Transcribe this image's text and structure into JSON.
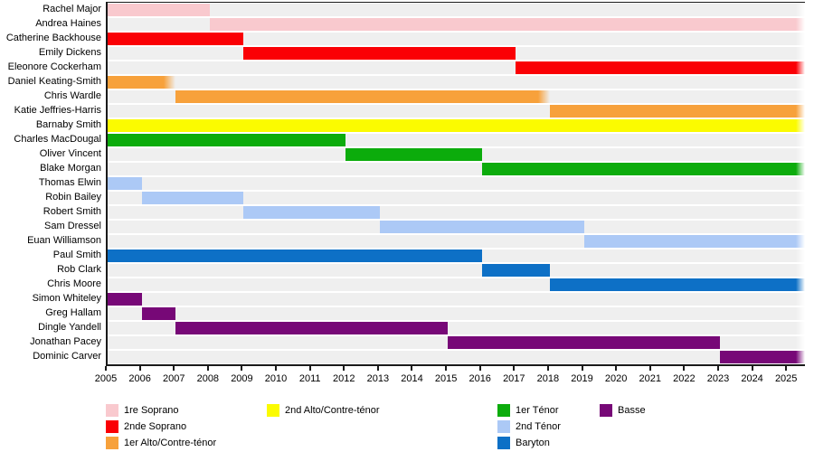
{
  "chart_data": {
    "type": "timeline",
    "title": "",
    "x_axis": {
      "min": 2005,
      "max": 2025.5,
      "ticks": [
        "2005",
        "2006",
        "2007",
        "2008",
        "2009",
        "2010",
        "2011",
        "2012",
        "2013",
        "2014",
        "2015",
        "2016",
        "2017",
        "2018",
        "2019",
        "2020",
        "2021",
        "2022",
        "2023",
        "2024",
        "2025"
      ]
    },
    "row_background_color": "#EFEFEF",
    "parts": {
      "soprano1": {
        "label": "1re Soprano",
        "color": "#F9C9CE"
      },
      "soprano2": {
        "label": "2nde Soprano",
        "color": "#FA0005"
      },
      "alto1": {
        "label": "1er Alto/Contre-ténor",
        "color": "#F7A13B"
      },
      "alto2": {
        "label": "2nd Alto/Contre-ténor",
        "color": "#FBFB00"
      },
      "tenor1": {
        "label": "1er Ténor",
        "color": "#0CAC0C"
      },
      "tenor2": {
        "label": "2nd Ténor",
        "color": "#ACC9F6"
      },
      "baryton": {
        "label": "Baryton",
        "color": "#0D70C6"
      },
      "basse": {
        "label": "Basse",
        "color": "#770877"
      }
    },
    "members": [
      {
        "name": "Rachel Major",
        "part": "soprano1",
        "start": 2005,
        "end": 2008,
        "ongoing": false,
        "fade_end": false
      },
      {
        "name": "Andrea Haines",
        "part": "soprano1",
        "start": 2008,
        "end": null,
        "ongoing": true,
        "fade_end": false
      },
      {
        "name": "Catherine Backhouse",
        "part": "soprano2",
        "start": 2005,
        "end": 2009,
        "ongoing": false,
        "fade_end": false
      },
      {
        "name": "Emily Dickens",
        "part": "soprano2",
        "start": 2009,
        "end": 2017,
        "ongoing": false,
        "fade_end": false
      },
      {
        "name": "Eleonore Cockerham",
        "part": "soprano2",
        "start": 2017,
        "end": null,
        "ongoing": true,
        "fade_end": false
      },
      {
        "name": "Daniel Keating-Smith",
        "part": "alto1",
        "start": 2005,
        "end": 2007,
        "ongoing": false,
        "fade_end": true
      },
      {
        "name": "Chris Wardle",
        "part": "alto1",
        "start": 2007,
        "end": 2018,
        "ongoing": false,
        "fade_end": true
      },
      {
        "name": "Katie Jeffries-Harris",
        "part": "alto1",
        "start": 2018,
        "end": null,
        "ongoing": true,
        "fade_end": false
      },
      {
        "name": "Barnaby Smith",
        "part": "alto2",
        "start": 2005,
        "end": null,
        "ongoing": true,
        "fade_end": false
      },
      {
        "name": "Charles MacDougal",
        "part": "tenor1",
        "start": 2005,
        "end": 2012,
        "ongoing": false,
        "fade_end": false
      },
      {
        "name": "Oliver Vincent",
        "part": "tenor1",
        "start": 2012,
        "end": 2016,
        "ongoing": false,
        "fade_end": false
      },
      {
        "name": "Blake Morgan",
        "part": "tenor1",
        "start": 2016,
        "end": null,
        "ongoing": true,
        "fade_end": false
      },
      {
        "name": "Thomas Elwin",
        "part": "tenor2",
        "start": 2005,
        "end": 2006,
        "ongoing": false,
        "fade_end": false
      },
      {
        "name": "Robin Bailey",
        "part": "tenor2",
        "start": 2006,
        "end": 2009,
        "ongoing": false,
        "fade_end": false
      },
      {
        "name": "Robert Smith",
        "part": "tenor2",
        "start": 2009,
        "end": 2013,
        "ongoing": false,
        "fade_end": false
      },
      {
        "name": "Sam Dressel",
        "part": "tenor2",
        "start": 2013,
        "end": 2019,
        "ongoing": false,
        "fade_end": false
      },
      {
        "name": "Euan Williamson",
        "part": "tenor2",
        "start": 2019,
        "end": null,
        "ongoing": true,
        "fade_end": false
      },
      {
        "name": "Paul Smith",
        "part": "baryton",
        "start": 2005,
        "end": 2016,
        "ongoing": false,
        "fade_end": false
      },
      {
        "name": "Rob Clark",
        "part": "baryton",
        "start": 2016,
        "end": 2018,
        "ongoing": false,
        "fade_end": false
      },
      {
        "name": "Chris Moore",
        "part": "baryton",
        "start": 2018,
        "end": null,
        "ongoing": true,
        "fade_end": false
      },
      {
        "name": "Simon Whiteley",
        "part": "basse",
        "start": 2005,
        "end": 2006,
        "ongoing": false,
        "fade_end": false
      },
      {
        "name": "Greg Hallam",
        "part": "basse",
        "start": 2006,
        "end": 2007,
        "ongoing": false,
        "fade_end": false
      },
      {
        "name": "Dingle Yandell",
        "part": "basse",
        "start": 2007,
        "end": 2015,
        "ongoing": false,
        "fade_end": false
      },
      {
        "name": "Jonathan Pacey",
        "part": "basse",
        "start": 2015,
        "end": 2023,
        "ongoing": false,
        "fade_end": false
      },
      {
        "name": "Dominic Carver",
        "part": "basse",
        "start": 2023,
        "end": null,
        "ongoing": true,
        "fade_end": false
      }
    ]
  },
  "legend": {
    "columns": [
      {
        "items": [
          "soprano1",
          "soprano2",
          "alto1"
        ]
      },
      {
        "items": [
          "alto2"
        ]
      },
      {
        "items": [
          "tenor1",
          "tenor2",
          "baryton"
        ]
      },
      {
        "items": [
          "basse"
        ]
      }
    ]
  }
}
